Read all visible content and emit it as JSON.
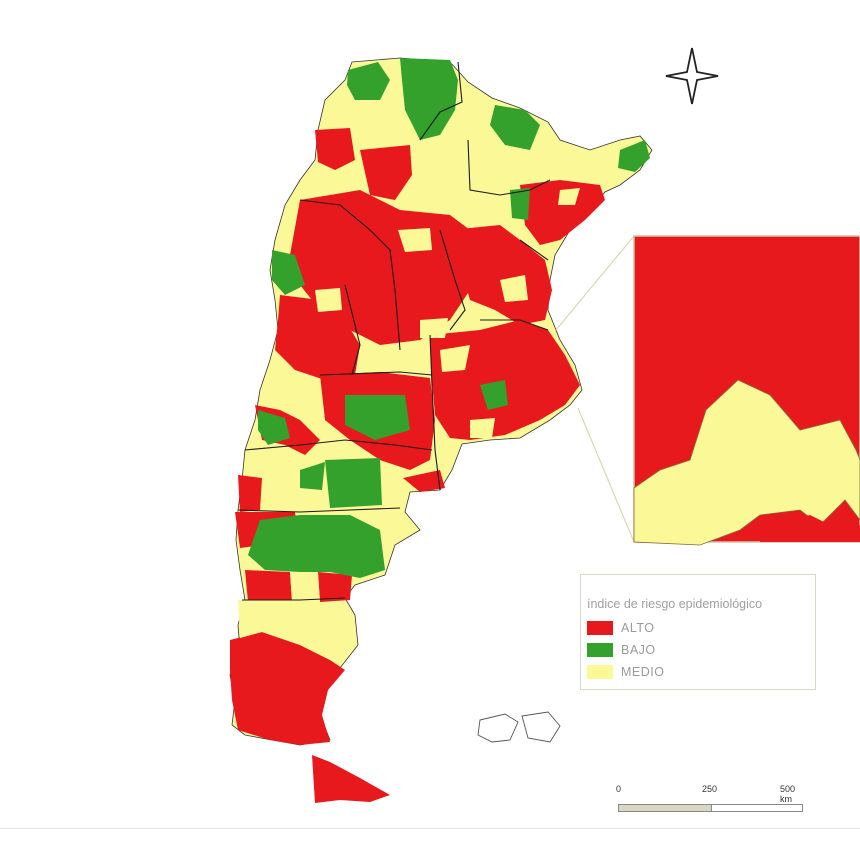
{
  "legend": {
    "title": "índice de riesgo epidemiológico",
    "items": [
      {
        "label": "ALTO",
        "color": "#e8191c"
      },
      {
        "label": "BAJO",
        "color": "#33a12b"
      },
      {
        "label": "MEDIO",
        "color": "#fbf898"
      }
    ]
  },
  "scale": {
    "labels": [
      "0",
      "250",
      "500 km"
    ],
    "colors": [
      "#d6d8c4",
      "#ffffff"
    ]
  },
  "compass": {
    "icon": "compass-rose-icon"
  },
  "map": {
    "region": "Argentina",
    "colors": {
      "alto": "#e8191c",
      "bajo": "#33a12b",
      "medio": "#fbf898",
      "border": "#1a1a1a"
    }
  }
}
